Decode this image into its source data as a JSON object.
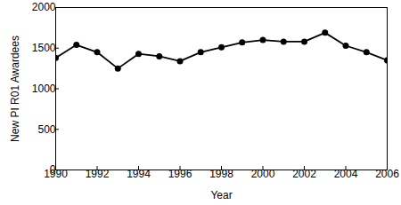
{
  "chart_data": {
    "type": "line",
    "x_label": "Year",
    "y_label": "New PI R01 Awardees",
    "x": [
      1990,
      1991,
      1992,
      1993,
      1994,
      1995,
      1996,
      1997,
      1998,
      1999,
      2000,
      2001,
      2002,
      2003,
      2004,
      2005,
      2006
    ],
    "values": [
      1380,
      1540,
      1450,
      1250,
      1430,
      1400,
      1340,
      1450,
      1510,
      1570,
      1600,
      1580,
      1580,
      1690,
      1530,
      1450,
      1350
    ],
    "color": "#000000",
    "marker": "circle",
    "xlim": [
      1990,
      2006
    ],
    "xticks": [
      1990,
      1992,
      1994,
      1996,
      1998,
      2000,
      2002,
      2004,
      2006
    ],
    "ylim": [
      0,
      2000
    ],
    "yticks": [
      0,
      500,
      1000,
      1500,
      2000
    ],
    "grid": false
  }
}
